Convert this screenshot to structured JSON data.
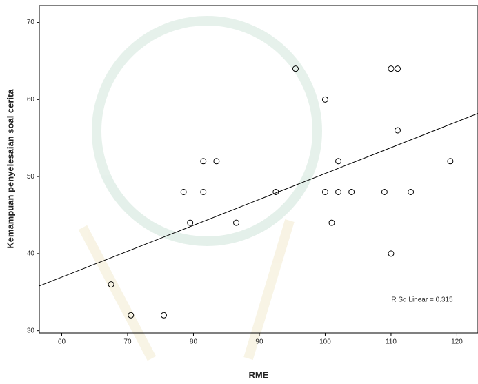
{
  "chart_data": {
    "type": "scatter",
    "x_label": "RME",
    "y_label": "Kemampuan penyelesaian soal cerita",
    "annotation": "R Sq Linear = 0.315",
    "x": [
      67.5,
      70.5,
      75.5,
      78.5,
      79.5,
      81.5,
      81.5,
      83.5,
      86.5,
      92.5,
      95.5,
      100,
      100,
      101,
      102,
      102,
      104,
      109,
      110,
      111,
      111,
      110,
      113,
      119
    ],
    "y": [
      36,
      32,
      32,
      48,
      44,
      52,
      48,
      52,
      44,
      48,
      64,
      60,
      48,
      44,
      52,
      48,
      48,
      48,
      64,
      64,
      56,
      40,
      48,
      52
    ],
    "color": "#000000",
    "fit_line": {
      "x": [
        56.6,
        123.2
      ],
      "y": [
        35.8,
        58.2
      ],
      "color": "#000000"
    },
    "xlim": [
      56.6,
      123.2
    ],
    "ylim": [
      29.7,
      72.2
    ],
    "xticks": [
      60,
      70,
      80,
      90,
      100,
      110,
      120
    ],
    "yticks": [
      30,
      40,
      50,
      60,
      70
    ]
  }
}
